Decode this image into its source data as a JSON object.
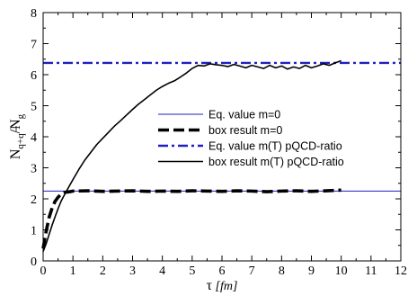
{
  "chart_data": {
    "type": "line",
    "xlabel": "τ",
    "xlabel_unit": "[fm]",
    "ylabel": "N_{q+q̄}/N_g",
    "ylabel_main": "N",
    "ylabel_sub": "q+q",
    "ylabel_denom": "/N",
    "ylabel_denom_sub": "g",
    "xlim": [
      0,
      12
    ],
    "ylim": [
      0,
      8
    ],
    "xticks": [
      "0",
      "1",
      "2",
      "3",
      "4",
      "5",
      "6",
      "7",
      "8",
      "9",
      "10",
      "11",
      "12"
    ],
    "yticks": [
      "0",
      "1",
      "2",
      "3",
      "4",
      "5",
      "6",
      "7",
      "8"
    ],
    "grid": false,
    "legend_placement": "center-right",
    "series": [
      {
        "name": "Eq. value m=0",
        "style": "thin-solid",
        "color": "#2020c0",
        "x": [
          0,
          12
        ],
        "y": [
          2.25,
          2.25
        ]
      },
      {
        "name": "box result m=0",
        "style": "thick-dashed",
        "color": "#000000",
        "x": [
          0,
          0.1,
          0.2,
          0.3,
          0.4,
          0.5,
          0.6,
          0.7,
          0.8,
          0.9,
          1.0,
          1.5,
          2.0,
          2.5,
          3.0,
          3.5,
          4.0,
          4.5,
          5.0,
          5.5,
          6.0,
          6.5,
          7.0,
          7.5,
          8.0,
          8.5,
          9.0,
          9.5,
          10.0
        ],
        "y": [
          0.4,
          0.95,
          1.4,
          1.7,
          1.92,
          2.05,
          2.15,
          2.2,
          2.22,
          2.23,
          2.25,
          2.26,
          2.24,
          2.25,
          2.26,
          2.24,
          2.25,
          2.24,
          2.26,
          2.25,
          2.24,
          2.26,
          2.25,
          2.23,
          2.25,
          2.26,
          2.24,
          2.26,
          2.28
        ]
      },
      {
        "name": "Eq. value m(T) pQCD-ratio",
        "style": "dash-dot",
        "color": "#2020c0",
        "x": [
          0,
          12
        ],
        "y": [
          6.38,
          6.38
        ]
      },
      {
        "name": "box result m(T) pQCD-ratio",
        "style": "solid",
        "color": "#000000",
        "x": [
          0,
          0.1,
          0.2,
          0.3,
          0.4,
          0.5,
          0.6,
          0.7,
          0.8,
          1.0,
          1.2,
          1.4,
          1.6,
          1.8,
          2.0,
          2.2,
          2.4,
          2.6,
          2.8,
          3.0,
          3.2,
          3.4,
          3.6,
          3.8,
          4.0,
          4.2,
          4.4,
          4.6,
          4.8,
          5.0,
          5.2,
          5.4,
          5.6,
          5.8,
          6.0,
          6.2,
          6.4,
          6.6,
          6.8,
          7.0,
          7.2,
          7.4,
          7.6,
          7.8,
          8.0,
          8.2,
          8.4,
          8.6,
          8.8,
          9.0,
          9.2,
          9.4,
          9.6,
          9.8,
          10.0
        ],
        "y": [
          0.3,
          0.55,
          0.85,
          1.15,
          1.42,
          1.68,
          1.92,
          2.1,
          2.28,
          2.62,
          2.95,
          3.25,
          3.5,
          3.75,
          3.95,
          4.15,
          4.35,
          4.52,
          4.7,
          4.88,
          5.05,
          5.2,
          5.35,
          5.5,
          5.62,
          5.72,
          5.8,
          5.92,
          6.05,
          6.2,
          6.3,
          6.28,
          6.35,
          6.32,
          6.3,
          6.26,
          6.33,
          6.28,
          6.22,
          6.3,
          6.25,
          6.2,
          6.3,
          6.22,
          6.28,
          6.18,
          6.25,
          6.2,
          6.3,
          6.22,
          6.28,
          6.35,
          6.3,
          6.38,
          6.45
        ]
      }
    ]
  }
}
